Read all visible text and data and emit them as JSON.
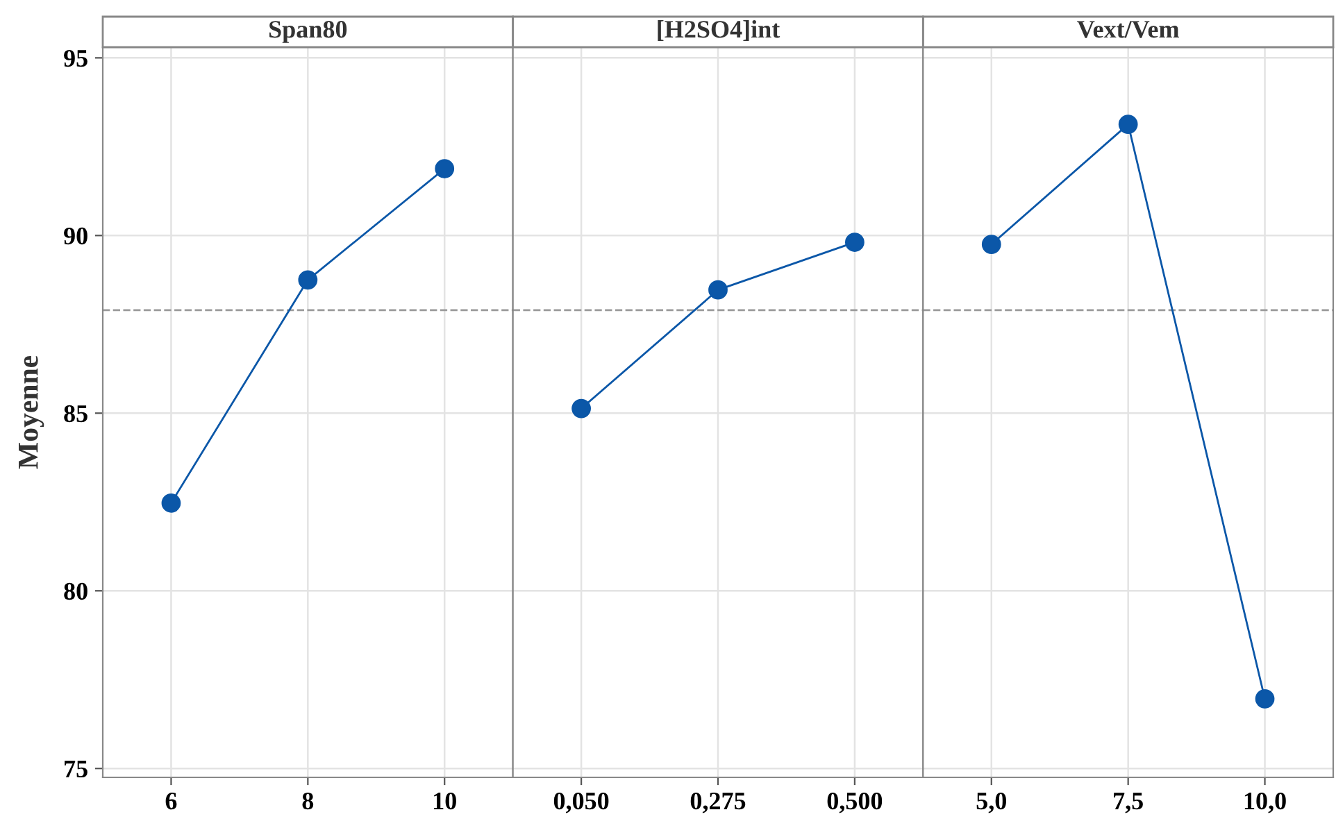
{
  "chart_data": [
    {
      "type": "line",
      "title": "Span80",
      "ylabel": "Moyenne",
      "categories": [
        "6",
        "8",
        "10"
      ],
      "series": [
        {
          "color": "#0b57a8",
          "values": [
            82.47,
            88.75,
            91.88
          ]
        }
      ],
      "ylim": [
        74.75,
        95.3
      ],
      "yticks": [
        75,
        80,
        85,
        90,
        95
      ],
      "grid": true,
      "marker": "circle",
      "line_style": "solid",
      "ref_lines": [
        {
          "axis": "y",
          "value": 87.9,
          "color": "#9a9a9a",
          "line_style": "dashed"
        }
      ]
    },
    {
      "type": "line",
      "title": "[H2SO4]int",
      "categories": [
        "0,050",
        "0,275",
        "0,500"
      ],
      "series": [
        {
          "color": "#0b57a8",
          "values": [
            85.13,
            88.47,
            89.81
          ]
        }
      ],
      "ylim": [
        74.75,
        95.3
      ],
      "yticks": [
        75,
        80,
        85,
        90,
        95
      ],
      "tick_labels": "x",
      "grid": true,
      "marker": "circle",
      "line_style": "solid",
      "ref_lines": [
        {
          "axis": "y",
          "value": 87.9,
          "color": "#9a9a9a",
          "line_style": "dashed"
        }
      ]
    },
    {
      "type": "line",
      "title": "Vext/Vem",
      "categories": [
        "5,0",
        "7,5",
        "10,0"
      ],
      "series": [
        {
          "color": "#0b57a8",
          "values": [
            89.75,
            93.13,
            76.96
          ]
        }
      ],
      "ylim": [
        74.75,
        95.3
      ],
      "yticks": [
        75,
        80,
        85,
        90,
        95
      ],
      "tick_labels": "x",
      "grid": true,
      "marker": "circle",
      "line_style": "solid",
      "ref_lines": [
        {
          "axis": "y",
          "value": 87.9,
          "color": "#9a9a9a",
          "line_style": "dashed"
        }
      ]
    }
  ]
}
